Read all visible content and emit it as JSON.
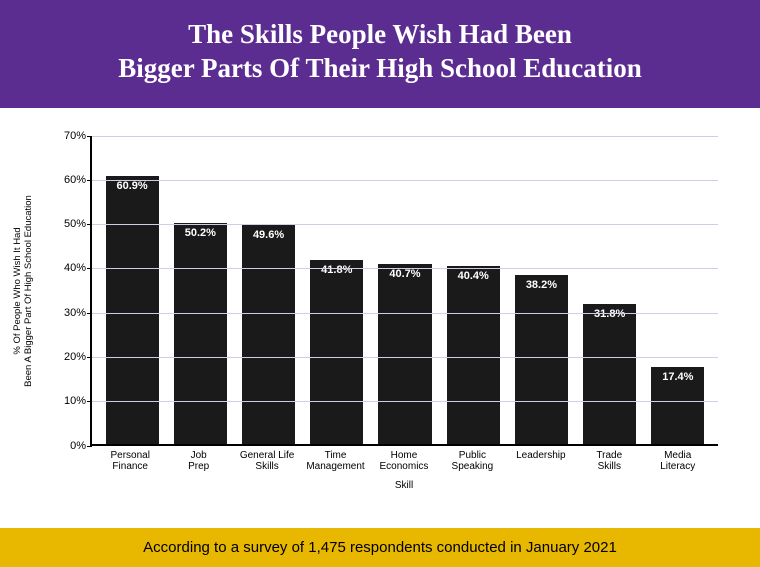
{
  "header": {
    "title_line1": "The Skills People Wish Had Been",
    "title_line2": "Bigger Parts Of Their High School Education",
    "background_color": "#5c2d91",
    "text_color": "#ffffff",
    "fontsize": 27
  },
  "chart": {
    "type": "bar",
    "categories": [
      "Personal Finance",
      "Job Prep",
      "General Life Skills",
      "Time Management",
      "Home Economics",
      "Public Speaking",
      "Leadership",
      "Trade Skills",
      "Media Literacy"
    ],
    "values": [
      60.9,
      50.2,
      49.6,
      41.8,
      40.7,
      40.4,
      38.2,
      31.8,
      17.4
    ],
    "value_labels": [
      "60.9%",
      "50.2%",
      "49.6%",
      "41.8%",
      "40.7%",
      "40.4%",
      "38.2%",
      "31.8%",
      "17.4%"
    ],
    "bar_color": "#1a1a1a",
    "bar_label_color": "#ffffff",
    "grid_color": "#d3cce3",
    "axis_color": "#000000",
    "ylabel": "% Of People Who Wish It Had\nBeen A Bigger Part Of High School Education",
    "xlabel": "Skill",
    "ylim": [
      0,
      70
    ],
    "yticks": [
      0,
      10,
      20,
      30,
      40,
      50,
      60,
      70
    ],
    "ytick_labels": [
      "0%",
      "10%",
      "20%",
      "30%",
      "40%",
      "50%",
      "60%",
      "70%"
    ],
    "label_fontsize": 10,
    "value_fontsize": 11,
    "bar_width": 0.78
  },
  "footer": {
    "text": "According to a survey of 1,475 respondents conducted in January 2021",
    "background_color": "#e8b800",
    "text_color": "#000000",
    "fontsize": 15
  }
}
